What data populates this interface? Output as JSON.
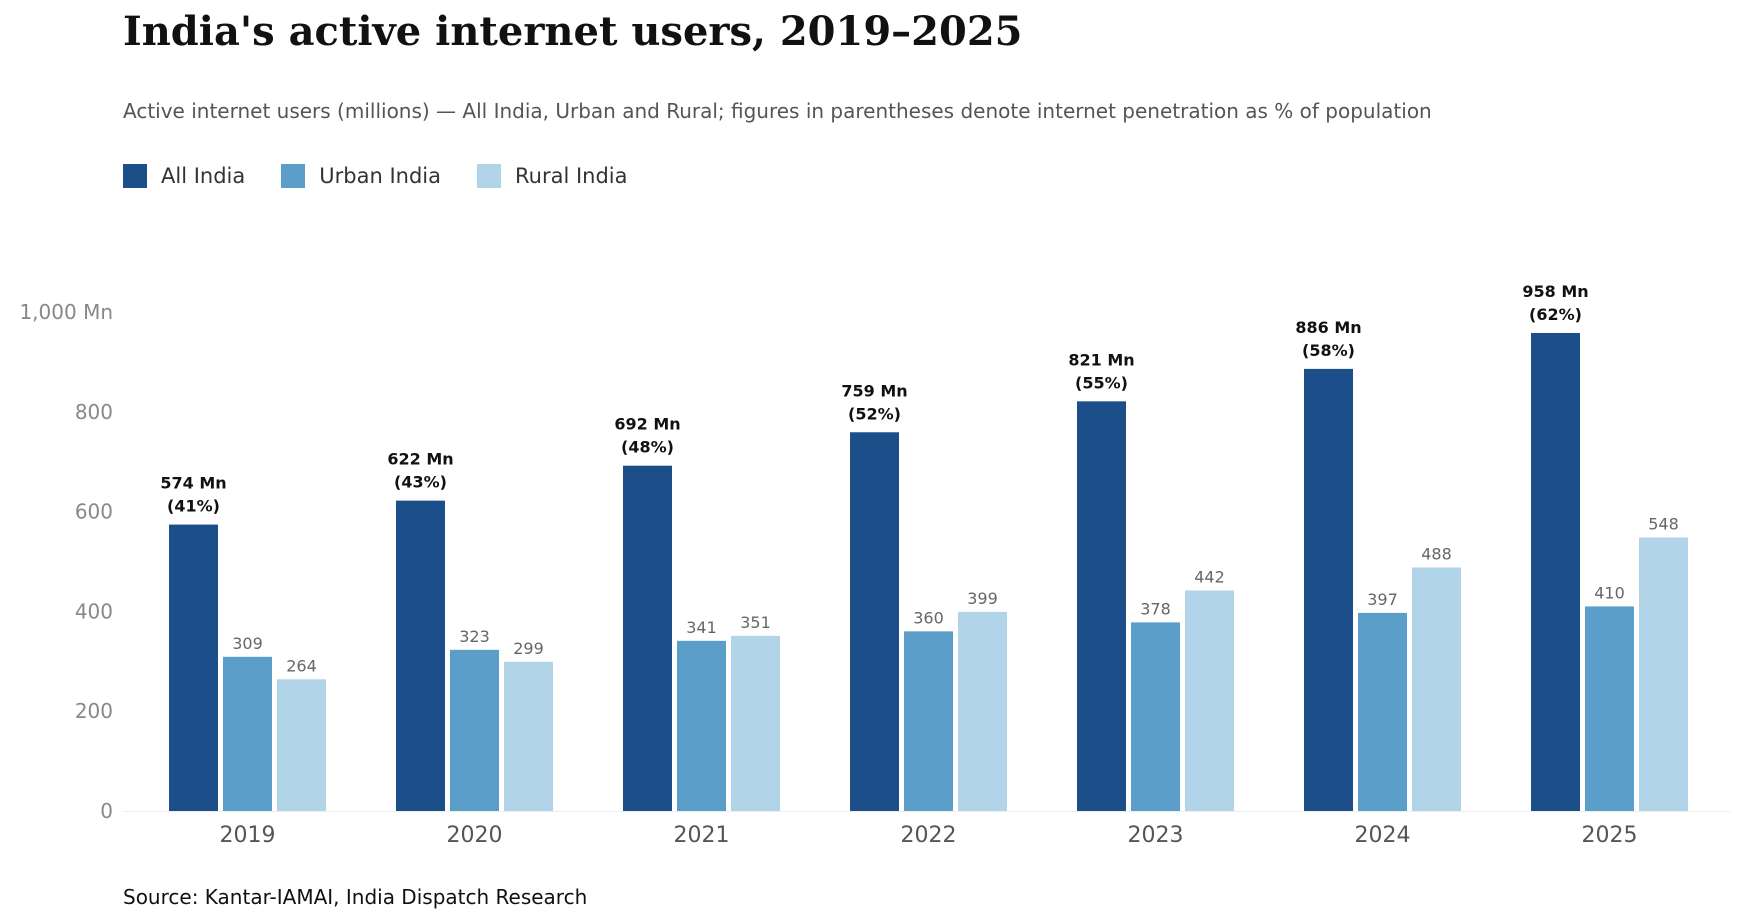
{
  "title": "India's active internet users, 2019–2025",
  "subtitle": "Active internet users (millions) — All India, Urban and Rural; figures in parentheses denote internet penetration as % of population",
  "source": "Source: Kantar-IAMAI, India Dispatch Research",
  "chart_data": {
    "type": "bar",
    "categories": [
      "2019",
      "2020",
      "2021",
      "2022",
      "2023",
      "2024",
      "2025"
    ],
    "series": [
      {
        "name": "All India",
        "color": "#1c4f8a",
        "values": [
          574,
          622,
          692,
          759,
          821,
          886,
          958
        ]
      },
      {
        "name": "Urban India",
        "color": "#5b9ec9",
        "values": [
          309,
          323,
          341,
          360,
          378,
          397,
          410
        ]
      },
      {
        "name": "Rural India",
        "color": "#b1d4e8",
        "values": [
          264,
          299,
          351,
          399,
          442,
          488,
          548
        ]
      }
    ],
    "all_india_labels": [
      "574 Mn",
      "622 Mn",
      "692 Mn",
      "759 Mn",
      "821 Mn",
      "886 Mn",
      "958 Mn"
    ],
    "penetration_labels": [
      "(41%)",
      "(43%)",
      "(48%)",
      "(52%)",
      "(55%)",
      "(58%)",
      "(62%)"
    ],
    "yticks": [
      {
        "value": 0,
        "label": "0"
      },
      {
        "value": 200,
        "label": "200"
      },
      {
        "value": 400,
        "label": "400"
      },
      {
        "value": 600,
        "label": "600"
      },
      {
        "value": 800,
        "label": "800"
      },
      {
        "value": 1000,
        "label": "1,000 Mn"
      }
    ],
    "ylim": [
      0,
      1000
    ],
    "grid": false,
    "legend_position": "top-left"
  }
}
